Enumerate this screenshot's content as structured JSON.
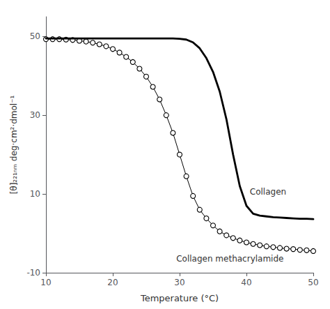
{
  "chart_data": {
    "type": "line",
    "xlabel": "Temperature (°C)",
    "ylabel": "[θ]₂₂₁ₙₘ deg·cm²·dmol⁻¹",
    "xlim": [
      10,
      50
    ],
    "ylim": [
      -10,
      55
    ],
    "xticks": [
      10,
      20,
      30,
      40,
      50
    ],
    "yticks": [
      -10,
      10,
      30,
      50
    ],
    "grid": false,
    "x": [
      10,
      11,
      12,
      13,
      14,
      15,
      16,
      17,
      18,
      19,
      20,
      21,
      22,
      23,
      24,
      25,
      26,
      27,
      28,
      29,
      30,
      31,
      32,
      33,
      34,
      35,
      36,
      37,
      38,
      39,
      40,
      41,
      42,
      43,
      44,
      45,
      46,
      47,
      48,
      49,
      50
    ],
    "series": [
      {
        "color": "#000000",
        "line_style": "solid",
        "values": [
          49.5,
          49.5,
          49.5,
          49.5,
          49.5,
          49.5,
          49.5,
          49.5,
          49.5,
          49.5,
          49.5,
          49.5,
          49.5,
          49.5,
          49.5,
          49.5,
          49.5,
          49.5,
          49.5,
          49.5,
          49.4,
          49.2,
          48.5,
          47.0,
          44.5,
          41.0,
          36.0,
          29.0,
          20.0,
          12.0,
          7.0,
          5.0,
          4.5,
          4.3,
          4.1,
          4.0,
          3.9,
          3.8,
          3.7,
          3.7,
          3.6
        ]
      },
      {
        "color": "#000000",
        "line_style": "solid",
        "marker": "circle",
        "values": [
          49.3,
          49.3,
          49.3,
          49.2,
          49.1,
          48.9,
          48.7,
          48.4,
          48.0,
          47.5,
          46.8,
          45.9,
          44.8,
          43.5,
          41.8,
          39.8,
          37.2,
          34.0,
          30.0,
          25.5,
          20.0,
          14.5,
          9.5,
          6.0,
          3.8,
          2.0,
          0.5,
          -0.5,
          -1.2,
          -1.8,
          -2.3,
          -2.7,
          -3.0,
          -3.3,
          -3.5,
          -3.7,
          -3.9,
          -4.0,
          -4.2,
          -4.3,
          -4.5
        ]
      }
    ],
    "annotations": [
      {
        "text": "Collagen",
        "x": 40.5,
        "y": 10.5
      },
      {
        "text": "Collagen methacrylamide",
        "x": 29.5,
        "y": -6.5
      }
    ]
  }
}
